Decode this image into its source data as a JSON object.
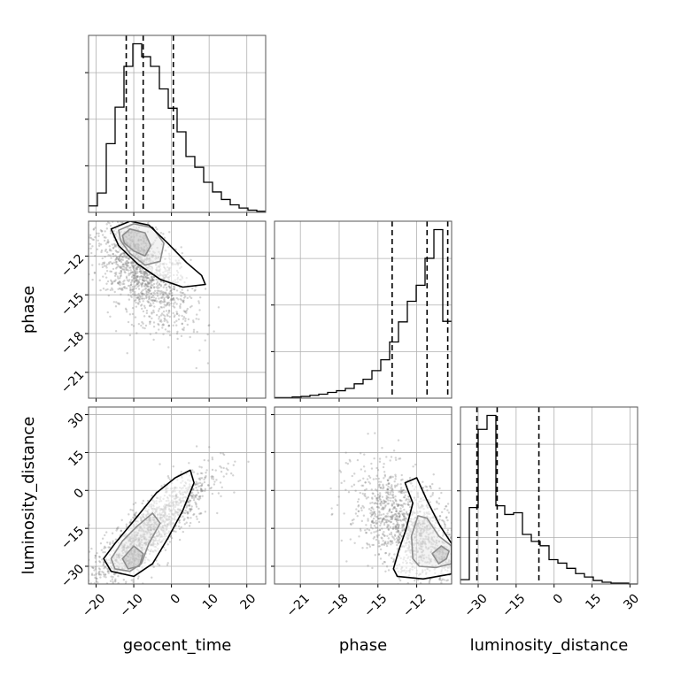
{
  "chart_data": {
    "type": "corner",
    "parameters": [
      "geocent_time",
      "phase",
      "luminosity_distance"
    ],
    "axis_labels": {
      "x": [
        "geocent_time",
        "phase",
        "luminosity_distance"
      ],
      "y": [
        "phase",
        "luminosity_distance"
      ]
    },
    "ranges": {
      "geocent_time": [
        -22,
        25
      ],
      "phase": [
        -23.0,
        -9.3
      ],
      "luminosity_distance": [
        -37,
        33
      ]
    },
    "ticks": {
      "geocent_time": {
        "values": [
          -20,
          -10,
          0,
          10,
          20
        ],
        "labels": [
          "−20",
          "−10",
          "0",
          "10",
          "20"
        ]
      },
      "phase": {
        "values": [
          -21,
          -18,
          -15,
          -12
        ],
        "labels": [
          "−21",
          "−18",
          "−15",
          "−12"
        ]
      },
      "luminosity_distance": {
        "values": [
          -30,
          -15,
          0,
          15,
          30
        ],
        "labels": [
          "−30",
          "−15",
          "0",
          "15",
          "30"
        ]
      }
    },
    "quantiles": {
      "geocent_time": [
        -12.0,
        -7.5,
        0.5
      ],
      "phase": [
        -13.9,
        -11.2,
        -9.6
      ],
      "luminosity_distance": [
        -30.5,
        -22.5,
        -6.0
      ]
    },
    "histograms": {
      "geocent_time": {
        "edges": [
          -22,
          -19.65,
          -17.3,
          -14.95,
          -12.6,
          -10.25,
          -7.9,
          -5.55,
          -3.2,
          -0.85,
          1.5,
          3.85,
          6.2,
          8.55,
          10.9,
          13.25,
          15.6,
          17.95,
          20.3,
          22.65,
          25
        ],
        "counts": [
          0.06,
          0.18,
          0.64,
          0.98,
          1.36,
          1.57,
          1.45,
          1.36,
          1.15,
          0.97,
          0.75,
          0.52,
          0.42,
          0.28,
          0.19,
          0.12,
          0.07,
          0.04,
          0.02,
          0.01
        ]
      },
      "phase": {
        "edges": [
          -23.0,
          -22.315,
          -21.63,
          -20.945,
          -20.26,
          -19.575,
          -18.89,
          -18.205,
          -17.52,
          -16.835,
          -16.15,
          -15.465,
          -14.78,
          -14.095,
          -13.41,
          -12.725,
          -12.04,
          -11.355,
          -10.67,
          -9.985,
          -9.3
        ],
        "counts": [
          0.01,
          0.01,
          0.02,
          0.03,
          0.05,
          0.07,
          0.1,
          0.13,
          0.17,
          0.25,
          0.33,
          0.48,
          0.67,
          0.98,
          1.33,
          1.69,
          1.97,
          2.44,
          2.94,
          1.34
        ]
      },
      "luminosity_distance": {
        "edges": [
          -37,
          -33.5,
          -30,
          -26.5,
          -23,
          -19.5,
          -16,
          -12.5,
          -9,
          -5.5,
          -2,
          1.5,
          5,
          8.5,
          12,
          15.5,
          19,
          22.5,
          26,
          29.5,
          33
        ],
        "counts": [
          0.05,
          0.88,
          1.78,
          1.94,
          0.9,
          0.8,
          0.82,
          0.57,
          0.49,
          0.44,
          0.28,
          0.24,
          0.18,
          0.12,
          0.08,
          0.04,
          0.02,
          0.01,
          0.01,
          0.0
        ]
      }
    },
    "pairs": [
      {
        "x": "geocent_time",
        "y": "phase",
        "mean": [
          -8.0,
          -13.2
        ],
        "sd": [
          6.5,
          2.2
        ],
        "corr": -0.6,
        "contours": [
          [
            [
              -13,
              -10.4
            ],
            [
              -11,
              -9.9
            ],
            [
              -7,
              -10.2
            ],
            [
              -5.5,
              -11.2
            ],
            [
              -7,
              -12.0
            ],
            [
              -10,
              -11.6
            ],
            [
              -12.5,
              -11.0
            ]
          ],
          [
            [
              -14,
              -10.0
            ],
            [
              -10,
              -9.5
            ],
            [
              -5,
              -9.8
            ],
            [
              -2,
              -11.0
            ],
            [
              -3,
              -12.4
            ],
            [
              -7,
              -12.7
            ],
            [
              -11,
              -11.8
            ],
            [
              -13.5,
              -10.8
            ]
          ],
          [
            [
              -16,
              -9.9
            ],
            [
              -11,
              -9.3
            ],
            [
              -6,
              -9.6
            ],
            [
              -1,
              -11.0
            ],
            [
              4,
              -12.5
            ],
            [
              8,
              -13.5
            ],
            [
              9,
              -14.2
            ],
            [
              3,
              -14.4
            ],
            [
              -3,
              -13.8
            ],
            [
              -9,
              -12.6
            ],
            [
              -14,
              -11.2
            ]
          ]
        ]
      },
      {
        "x": "geocent_time",
        "y": "luminosity_distance",
        "mean": [
          -6.0,
          -16.0
        ],
        "sd": [
          8.0,
          12.0
        ],
        "corr": 0.85,
        "contours": [
          [
            [
              -13,
              -27
            ],
            [
              -10,
              -22
            ],
            [
              -7.5,
              -25
            ],
            [
              -8.5,
              -30
            ],
            [
              -11.5,
              -31
            ]
          ],
          [
            [
              -16,
              -27
            ],
            [
              -13,
              -20
            ],
            [
              -9,
              -14
            ],
            [
              -5,
              -9
            ],
            [
              -3,
              -13
            ],
            [
              -6,
              -21
            ],
            [
              -8,
              -29
            ],
            [
              -11,
              -32
            ],
            [
              -15,
              -31
            ]
          ],
          [
            [
              -18,
              -27
            ],
            [
              -15,
              -21
            ],
            [
              -10,
              -12
            ],
            [
              -4,
              -1
            ],
            [
              1,
              5
            ],
            [
              5,
              8
            ],
            [
              6,
              3
            ],
            [
              3,
              -8
            ],
            [
              -1,
              -19
            ],
            [
              -5,
              -29
            ],
            [
              -10,
              -34
            ],
            [
              -16,
              -32
            ]
          ]
        ]
      },
      {
        "x": "phase",
        "y": "luminosity_distance",
        "mean": [
          -12.5,
          -16.0
        ],
        "sd": [
          2.2,
          12.0
        ],
        "corr": -0.55,
        "contours": [
          [
            [
              -10.8,
              -25
            ],
            [
              -10.1,
              -22
            ],
            [
              -9.5,
              -24
            ],
            [
              -9.7,
              -27
            ],
            [
              -10.3,
              -29
            ]
          ],
          [
            [
              -12.3,
              -27
            ],
            [
              -12.4,
              -18
            ],
            [
              -11.9,
              -10
            ],
            [
              -11.2,
              -11
            ],
            [
              -10.3,
              -18
            ],
            [
              -9.3,
              -22
            ],
            [
              -9.3,
              -29
            ],
            [
              -10.5,
              -30.5
            ],
            [
              -11.8,
              -30
            ]
          ],
          [
            [
              -13.8,
              -31
            ],
            [
              -13.4,
              -24
            ],
            [
              -12.8,
              -15
            ],
            [
              -12.3,
              -5
            ],
            [
              -12.9,
              3
            ],
            [
              -12.0,
              5
            ],
            [
              -11.2,
              -4
            ],
            [
              -10.2,
              -14
            ],
            [
              -9.3,
              -21
            ],
            [
              -9.3,
              -33
            ],
            [
              -11.5,
              -35
            ],
            [
              -13.5,
              -34
            ]
          ]
        ]
      }
    ]
  }
}
